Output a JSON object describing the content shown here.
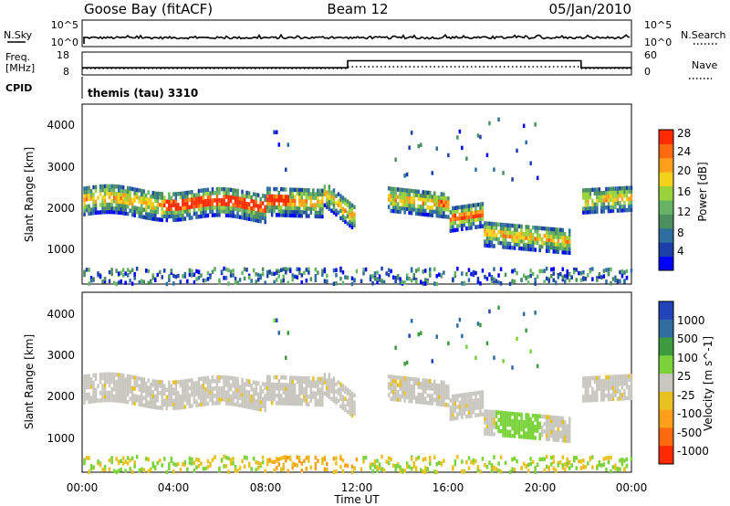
{
  "header": {
    "site": "Goose Bay (fitACF)",
    "beam": "Beam 12",
    "date": "05/Jan/2010"
  },
  "noise_panel": {
    "left_label": "N.Sky",
    "left_ticks": [
      "10^5",
      "10^0"
    ],
    "right_label": "N.Search",
    "right_ticks": [
      "10^5",
      "10^0"
    ]
  },
  "freq_panel": {
    "left_label_1": "Freq.",
    "left_label_2": "[MHz]",
    "left_ticks": [
      "18",
      "8"
    ],
    "right_label": "Nave",
    "right_ticks": [
      "60",
      "0"
    ],
    "cpid_label": "CPID",
    "cpid_text": "themis (tau) 3310"
  },
  "x_axis": {
    "label": "Time UT",
    "ticks": [
      "00:00",
      "04:00",
      "08:00",
      "12:00",
      "16:00",
      "20:00",
      "00:00"
    ]
  },
  "colors": {
    "power": [
      "#0000ff",
      "#1c3fa8",
      "#2e6fa0",
      "#4b8f5f",
      "#66b366",
      "#9ad23b",
      "#f2d21a",
      "#ff9f1a",
      "#ff6a10",
      "#ff2a00"
    ],
    "velocity_pos": [
      "#2244bb",
      "#2f6ca0",
      "#3e9a3e",
      "#7ad33a"
    ],
    "velocity_neu": "#c8c8c0",
    "velocity_neg": [
      "#e8c020",
      "#ff9f1a",
      "#ff6a10",
      "#ff2a00"
    ]
  },
  "chart_data": [
    {
      "type": "heatmap",
      "name": "power",
      "ylabel": "Slant Range [km]",
      "yticks": [
        "4000",
        "3000",
        "2000",
        "1000"
      ],
      "ylim": [
        200,
        4600
      ],
      "xlim_hours": [
        0,
        24
      ],
      "colorbar": {
        "label": "Power [dB]",
        "ticks": [
          "28",
          "24",
          "20",
          "16",
          "12",
          "8",
          "4"
        ]
      }
    },
    {
      "type": "heatmap",
      "name": "velocity",
      "ylabel": "Slant Range [km]",
      "yticks": [
        "4000",
        "3000",
        "2000",
        "1000"
      ],
      "ylim": [
        200,
        4600
      ],
      "xlim_hours": [
        0,
        24
      ],
      "colorbar": {
        "label": "Velocity [m s^-1]",
        "ticks": [
          "1000",
          "500",
          "100",
          "25",
          "-25",
          "-100",
          "-500",
          "-1000"
        ]
      }
    },
    {
      "type": "line",
      "name": "frequency",
      "x_hours": [
        0,
        11.6,
        11.6,
        21.8,
        21.8,
        24
      ],
      "y_mhz": [
        10.4,
        10.4,
        15.2,
        15.2,
        10.4,
        10.4
      ]
    }
  ]
}
